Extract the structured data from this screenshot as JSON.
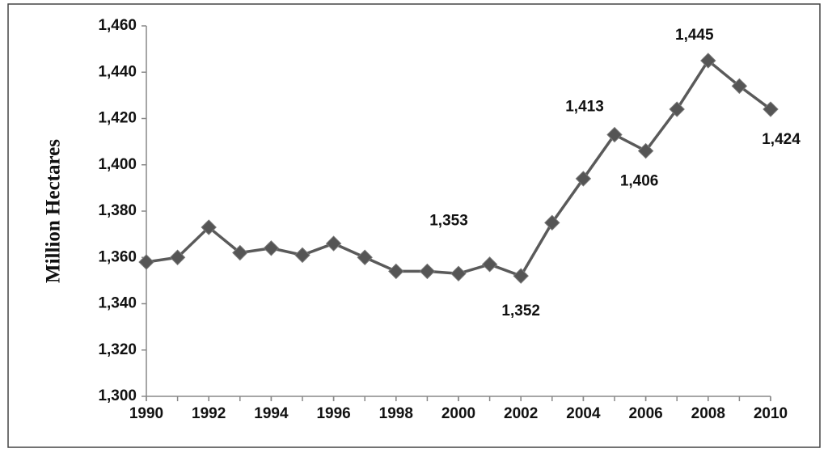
{
  "chart_data": {
    "type": "line",
    "y_label": "Million Hectares",
    "x": [
      1990,
      1991,
      1992,
      1993,
      1994,
      1995,
      1996,
      1997,
      1998,
      1999,
      2000,
      2001,
      2002,
      2003,
      2004,
      2005,
      2006,
      2007,
      2008,
      2009,
      2010
    ],
    "values": [
      1358,
      1360,
      1373,
      1362,
      1364,
      1361,
      1366,
      1360,
      1354,
      1354,
      1353,
      1357,
      1352,
      1375,
      1394,
      1413,
      1406,
      1424,
      1445,
      1434,
      1424
    ],
    "value_labels": [
      null,
      null,
      null,
      null,
      null,
      null,
      null,
      null,
      null,
      null,
      "1,353",
      null,
      "1,352",
      null,
      null,
      "1,413",
      "1,406",
      null,
      "1,445",
      null,
      "1,424"
    ],
    "color": "#5a5a5a",
    "xlim": [
      1990,
      2010
    ],
    "xticks": [
      1990,
      1992,
      1994,
      1996,
      1998,
      2000,
      2002,
      2004,
      2006,
      2008,
      2010
    ],
    "ylim": [
      1300,
      1460
    ],
    "yticks": [
      {
        "value": 1300,
        "label": "1,300"
      },
      {
        "value": 1320,
        "label": "1,320"
      },
      {
        "value": 1340,
        "label": "1,340"
      },
      {
        "value": 1360,
        "label": "1,360"
      },
      {
        "value": 1380,
        "label": "1,380"
      },
      {
        "value": 1400,
        "label": "1,400"
      },
      {
        "value": 1420,
        "label": "1,420"
      },
      {
        "value": 1440,
        "label": "1,440"
      },
      {
        "value": 1460,
        "label": "1,460"
      }
    ]
  }
}
